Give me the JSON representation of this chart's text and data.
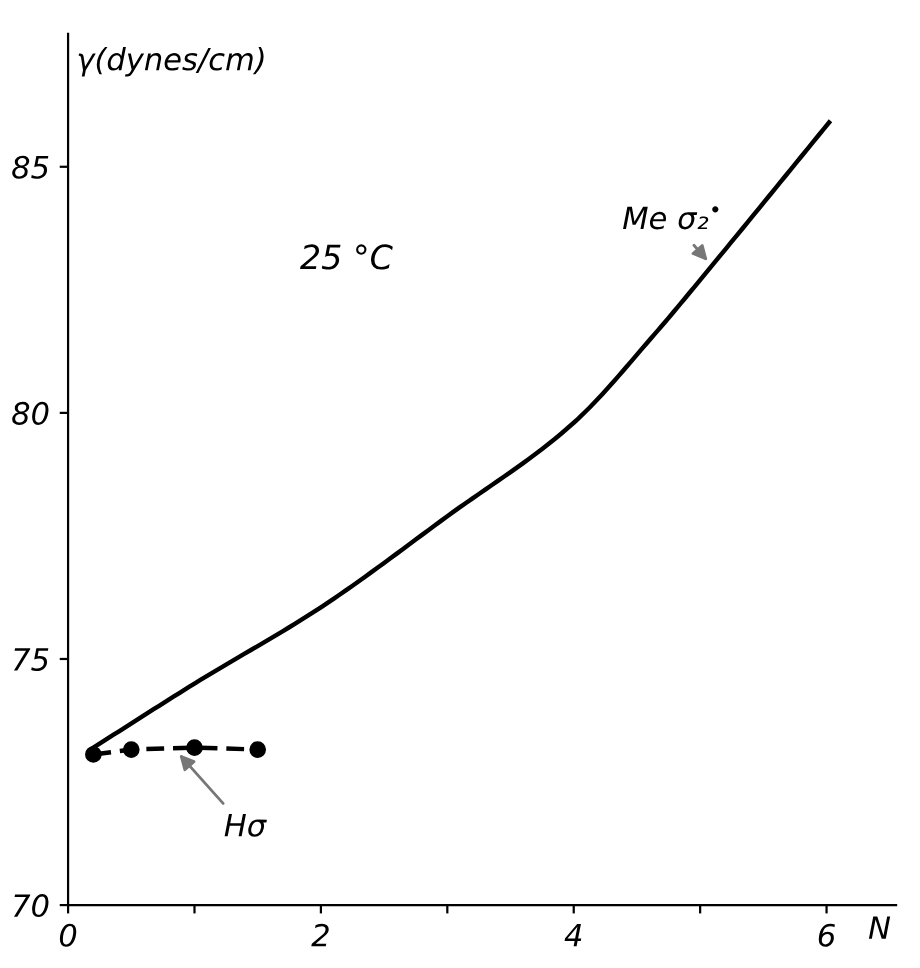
{
  "chart_data": {
    "type": "line",
    "xlabel": "N",
    "ylabel": "γ(dynes/cm)",
    "xlim": [
      0,
      6.55
    ],
    "ylim": [
      70,
      87.7
    ],
    "xticks": [
      0,
      {
        "value": 1,
        "label": null
      },
      2,
      {
        "value": 3,
        "label": null
      },
      4,
      {
        "value": 5,
        "label": null
      },
      6
    ],
    "yticks": [
      70,
      75,
      80,
      85
    ],
    "grid": false,
    "legend": false,
    "annotations": [
      "25 °C"
    ],
    "series": [
      {
        "name": "Me σ₂$^{•}$",
        "color": "#000000",
        "marker": "none",
        "line_style": "solid",
        "x": [
          0.2,
          1.0,
          2.0,
          3.0,
          4.0,
          4.64,
          5.16,
          6.02
        ],
        "values": [
          73.2,
          74.5,
          76.05,
          77.9,
          79.8,
          81.6,
          83.2,
          85.9
        ]
      },
      {
        "name": "Hσ",
        "color": "#000000",
        "marker": "circle",
        "line_style": "dashed",
        "x": [
          0.2,
          0.5,
          1.0,
          1.5
        ],
        "values": [
          73.06,
          73.16,
          73.2,
          73.16
        ]
      }
    ]
  }
}
